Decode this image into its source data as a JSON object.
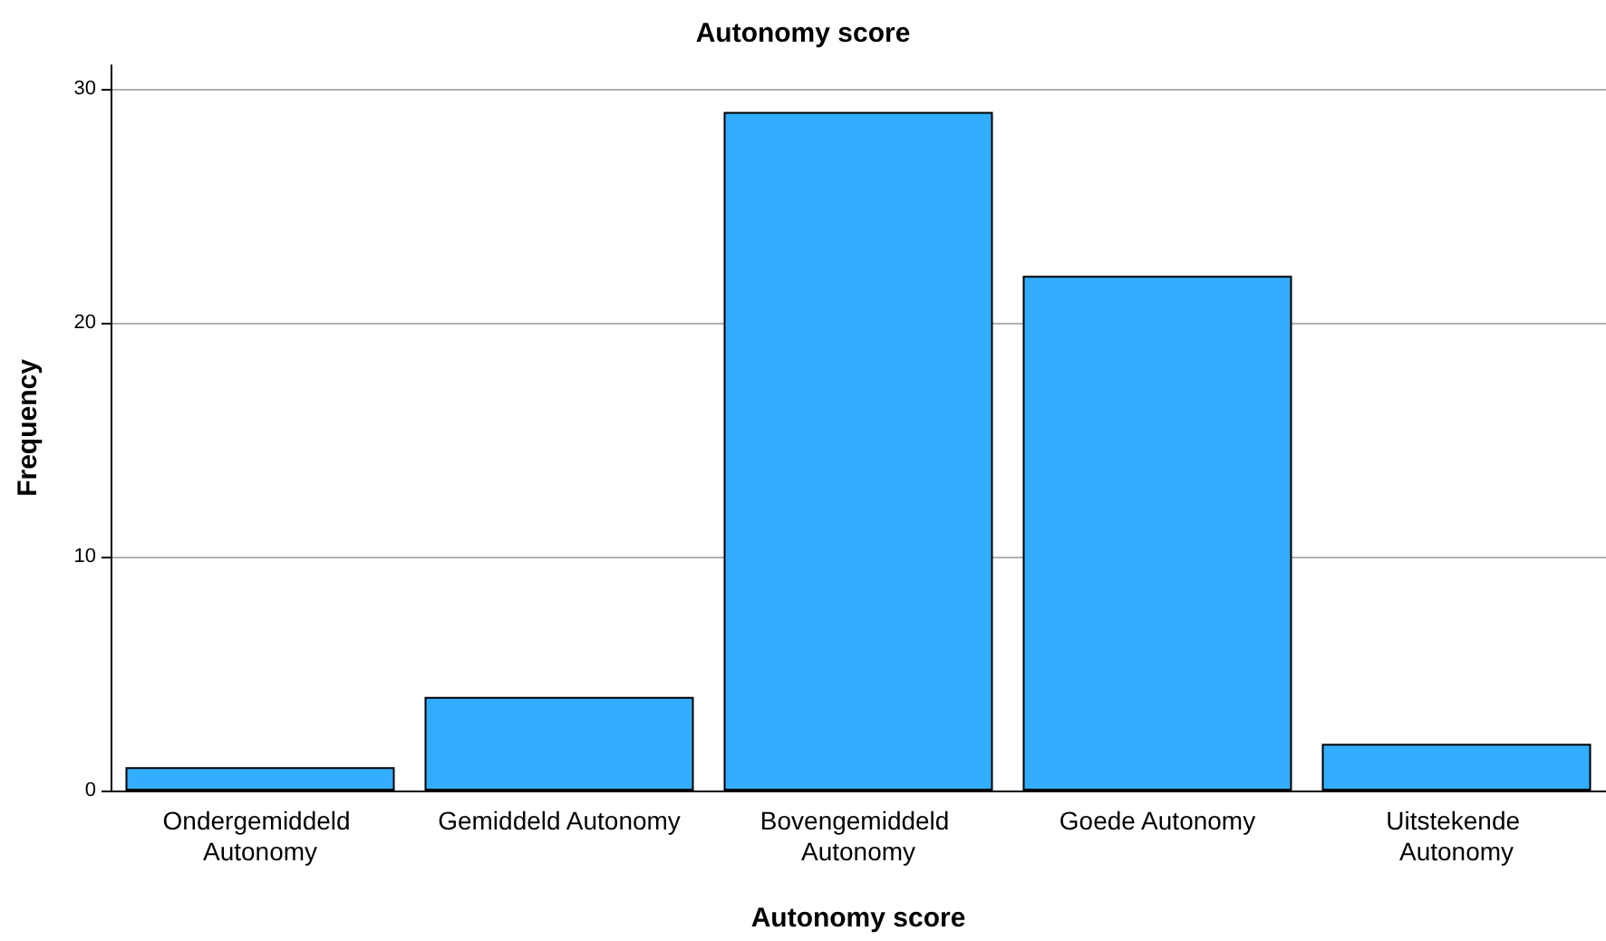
{
  "chart_data": {
    "type": "bar",
    "title": "Autonomy score",
    "xlabel": "Autonomy score",
    "ylabel": "Frequency",
    "categories": [
      "Ondergemiddeld Autonomy",
      "Gemiddeld Autonomy",
      "Bovengemiddeld Autonomy",
      "Goede Autonomy",
      "Uitstekende Autonomy"
    ],
    "values": [
      1,
      4,
      29,
      22,
      2
    ],
    "color": "#33adff",
    "ylim": [
      0,
      31
    ],
    "yticks": [
      0,
      10,
      20,
      30
    ],
    "grid": "y"
  }
}
